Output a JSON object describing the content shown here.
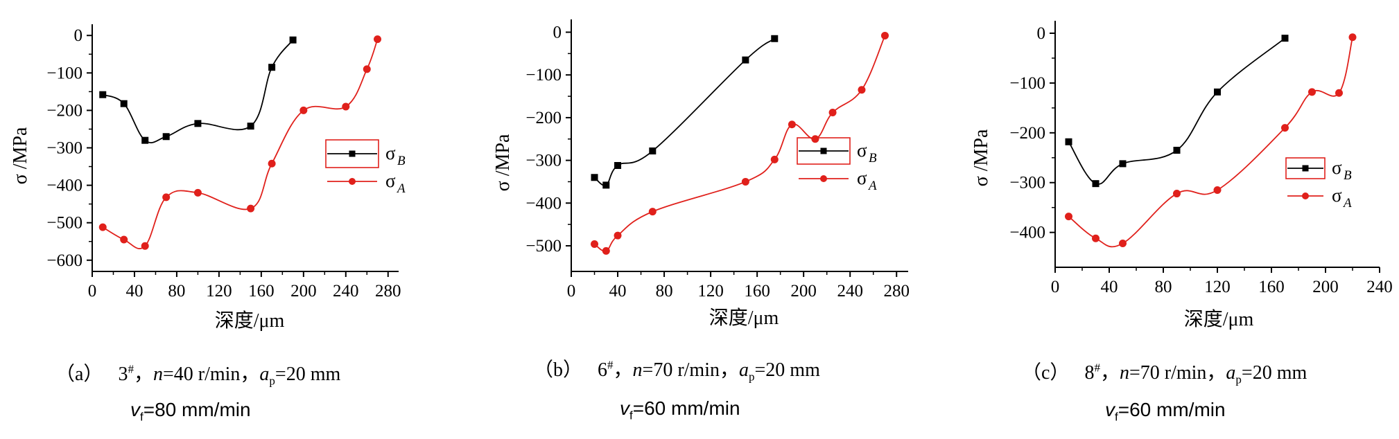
{
  "colors": {
    "series_b": "#000000",
    "series_a": "#e0201b",
    "axis": "#000000"
  },
  "chart_data": [
    {
      "type": "line",
      "xlabel": "深度/μm",
      "ylabel": "σ /MPa",
      "xlim": [
        0,
        290
      ],
      "ylim": [
        -630,
        30
      ],
      "xticks": [
        0,
        40,
        80,
        120,
        160,
        200,
        240,
        280
      ],
      "yticks": [
        0,
        -100,
        -200,
        -300,
        -400,
        -500,
        -600
      ],
      "legend": "right",
      "series": [
        {
          "name": "σB",
          "sym": "σ",
          "sub": "B",
          "color": "#000000",
          "marker": "square",
          "x": [
            10,
            30,
            50,
            70,
            100,
            150,
            170,
            190
          ],
          "y": [
            -158,
            -182,
            -280,
            -270,
            -235,
            -242,
            -85,
            -12
          ]
        },
        {
          "name": "σA",
          "sym": "σ",
          "sub": "A",
          "color": "#e0201b",
          "marker": "circle",
          "x": [
            10,
            30,
            50,
            70,
            100,
            150,
            170,
            200,
            240,
            260,
            270
          ],
          "y": [
            -512,
            -545,
            -562,
            -432,
            -420,
            -462,
            -342,
            -200,
            -190,
            -90,
            -10
          ]
        }
      ]
    },
    {
      "type": "line",
      "xlabel": "深度/μm",
      "ylabel": "σ /MPa",
      "xlim": [
        0,
        290
      ],
      "ylim": [
        -560,
        30
      ],
      "xticks": [
        0,
        40,
        80,
        120,
        160,
        200,
        240,
        280
      ],
      "yticks": [
        0,
        -100,
        -200,
        -300,
        -400,
        -500
      ],
      "legend": "right",
      "series": [
        {
          "name": "σB",
          "sym": "σ",
          "sub": "B",
          "color": "#000000",
          "marker": "square",
          "x": [
            20,
            30,
            40,
            70,
            150,
            175
          ],
          "y": [
            -340,
            -358,
            -312,
            -278,
            -65,
            -15
          ]
        },
        {
          "name": "σA",
          "sym": "σ",
          "sub": "A",
          "color": "#e0201b",
          "marker": "circle",
          "x": [
            20,
            30,
            40,
            70,
            150,
            175,
            190,
            210,
            225,
            250,
            270
          ],
          "y": [
            -496,
            -512,
            -476,
            -420,
            -350,
            -298,
            -216,
            -250,
            -188,
            -135,
            -8
          ]
        }
      ]
    },
    {
      "type": "line",
      "xlabel": "深度/μm",
      "ylabel": "σ /MPa",
      "xlim": [
        0,
        240
      ],
      "ylim": [
        -470,
        25
      ],
      "xticks": [
        0,
        40,
        80,
        120,
        160,
        200,
        240
      ],
      "yticks": [
        0,
        -100,
        -200,
        -300,
        -400
      ],
      "legend": "right",
      "series": [
        {
          "name": "σB",
          "sym": "σ",
          "sub": "B",
          "color": "#000000",
          "marker": "square",
          "x": [
            10,
            30,
            50,
            90,
            120,
            170
          ],
          "y": [
            -218,
            -302,
            -262,
            -235,
            -118,
            -10
          ]
        },
        {
          "name": "σA",
          "sym": "σ",
          "sub": "A",
          "color": "#e0201b",
          "marker": "circle",
          "x": [
            10,
            30,
            50,
            90,
            120,
            170,
            190,
            210,
            220
          ],
          "y": [
            -368,
            -412,
            -422,
            -322,
            -315,
            -190,
            -118,
            -120,
            -8
          ]
        }
      ]
    }
  ],
  "captions": [
    {
      "label": "（a）",
      "sample": "3",
      "sup": "#",
      "n_sym": "n",
      "n_val": "=40 r/min，",
      "ap_sym": "a",
      "ap_sub": "p",
      "ap_val": "=20 mm",
      "vf_sym": "v",
      "vf_sub": "f",
      "vf_val": "=80 mm/min"
    },
    {
      "label": "（b）",
      "sample": "6",
      "sup": "#",
      "n_sym": "n",
      "n_val": "=70 r/min，",
      "ap_sym": "a",
      "ap_sub": "p",
      "ap_val": "=20 mm",
      "vf_sym": "v",
      "vf_sub": "f",
      "vf_val": "=60 mm/min"
    },
    {
      "label": "（c）",
      "sample": "8",
      "sup": "#",
      "n_sym": "n",
      "n_val": "=70 r/min，",
      "ap_sym": "a",
      "ap_sub": "p",
      "ap_val": "=20 mm",
      "vf_sym": "v",
      "vf_sub": "f",
      "vf_val": "=60 mm/min"
    }
  ]
}
